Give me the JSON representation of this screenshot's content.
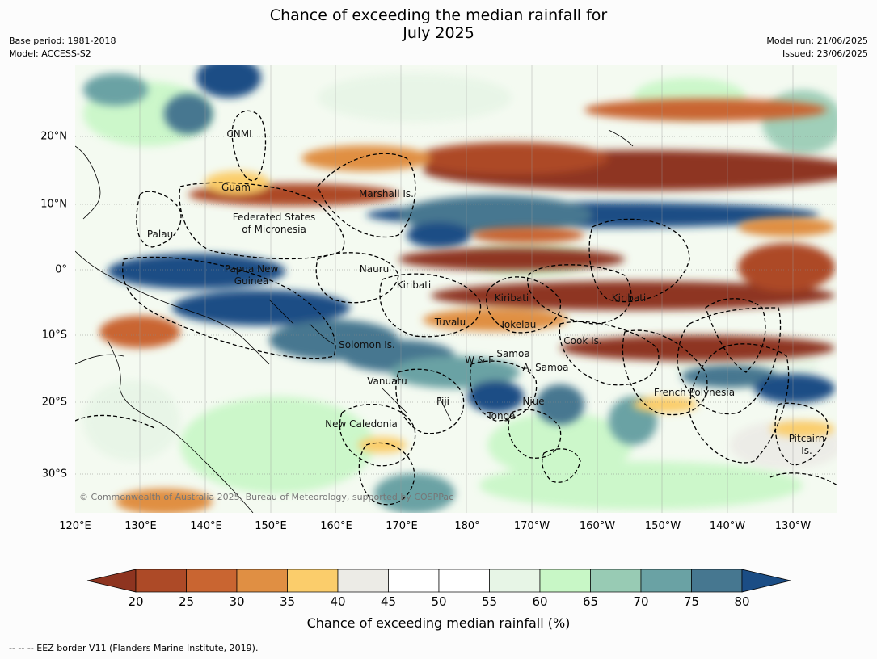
{
  "title_line1": "Chance of exceeding the median rainfall for",
  "title_line2": "July 2025",
  "meta_left": {
    "base_period": "Base period: 1981-2018",
    "model": "Model: ACCESS-S2"
  },
  "meta_right": {
    "model_run": "Model run: 21/06/2025",
    "issued": "Issued: 23/06/2025"
  },
  "copyright": "© Commonwealth of Australia 2025, Bureau of Meteorology, supported by COSPPac",
  "lon_labels": [
    "120°E",
    "130°E",
    "140°E",
    "150°E",
    "160°E",
    "170°E",
    "180°",
    "170°W",
    "160°W",
    "150°W",
    "140°W",
    "130°W"
  ],
  "lat_labels": [
    "20°N",
    "10°N",
    "0°",
    "10°S",
    "20°S",
    "30°S"
  ],
  "region_labels": [
    {
      "id": "cnmi",
      "text": "CNMI"
    },
    {
      "id": "guam",
      "text": "Guam"
    },
    {
      "id": "marshall",
      "text": "Marshall Is."
    },
    {
      "id": "fsm1",
      "text": "Federated States"
    },
    {
      "id": "fsm2",
      "text": "of Micronesia"
    },
    {
      "id": "palau",
      "text": "Palau"
    },
    {
      "id": "nauru",
      "text": "Nauru"
    },
    {
      "id": "png1",
      "text": "Papua New"
    },
    {
      "id": "png2",
      "text": "Guinea"
    },
    {
      "id": "kiribati_w",
      "text": "Kiribati"
    },
    {
      "id": "kiribati_c",
      "text": "Kiribati"
    },
    {
      "id": "kiribati_e",
      "text": "Kiribati"
    },
    {
      "id": "tuvalu",
      "text": "Tuvalu"
    },
    {
      "id": "tokelau",
      "text": "Tokelau"
    },
    {
      "id": "cook",
      "text": "Cook Is."
    },
    {
      "id": "solomon",
      "text": "Solomon Is."
    },
    {
      "id": "samoa",
      "text": "Samoa"
    },
    {
      "id": "wf",
      "text": "W & F"
    },
    {
      "id": "asamoa",
      "text": "A. Samoa"
    },
    {
      "id": "vanuatu",
      "text": "Vanuatu"
    },
    {
      "id": "fiji",
      "text": "Fiji"
    },
    {
      "id": "niue",
      "text": "Niue"
    },
    {
      "id": "tonga",
      "text": "Tonga"
    },
    {
      "id": "frpoly",
      "text": "French Polynesia"
    },
    {
      "id": "newcal",
      "text": "New Caledonia"
    },
    {
      "id": "pitcairn1",
      "text": "Pitcairn"
    },
    {
      "id": "pitcairn2",
      "text": "Is."
    }
  ],
  "colorbar": {
    "ticks": [
      "20",
      "25",
      "30",
      "35",
      "40",
      "45",
      "50",
      "55",
      "60",
      "65",
      "70",
      "75",
      "80"
    ],
    "colors": [
      "#8e3420",
      "#ad4a27",
      "#c96531",
      "#e08f43",
      "#fbcd6b",
      "#ecebe6",
      "#ffffff",
      "#ffffff",
      "#e7f5e6",
      "#c8f7c6",
      "#98cbb4",
      "#6aa2a4",
      "#467790",
      "#1b4d85"
    ],
    "title": "Chance of exceeding median rainfall (%)"
  },
  "footnote": "--  --  -- EEZ border V11 (Flanders Marine Institute, 2019)."
}
